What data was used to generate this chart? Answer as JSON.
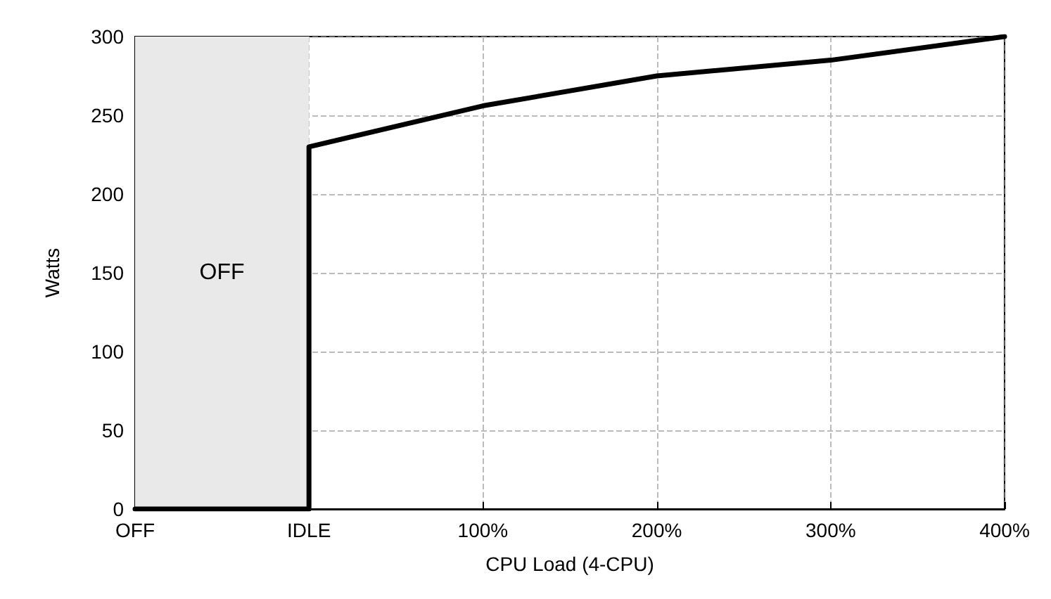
{
  "chart_data": {
    "type": "line",
    "xlabel": "CPU Load (4-CPU)",
    "ylabel": "Watts",
    "categories": [
      "OFF",
      "IDLE",
      "100%",
      "200%",
      "300%",
      "400%"
    ],
    "series": [
      {
        "color": "#000000",
        "x": [
          "OFF",
          "IDLE",
          "IDLE",
          "100%",
          "200%",
          "300%",
          "400%"
        ],
        "values": [
          0,
          0,
          230,
          256,
          275,
          285,
          300
        ]
      }
    ],
    "ylim": [
      0,
      300
    ],
    "yticks": [
      0,
      50,
      100,
      150,
      200,
      250,
      300
    ],
    "bands": [
      {
        "axis": "x",
        "from": "OFF",
        "to": "IDLE",
        "label": "OFF",
        "color": "#e9e9e9"
      }
    ],
    "grid": true,
    "marker": "none",
    "line_style": "solid"
  }
}
